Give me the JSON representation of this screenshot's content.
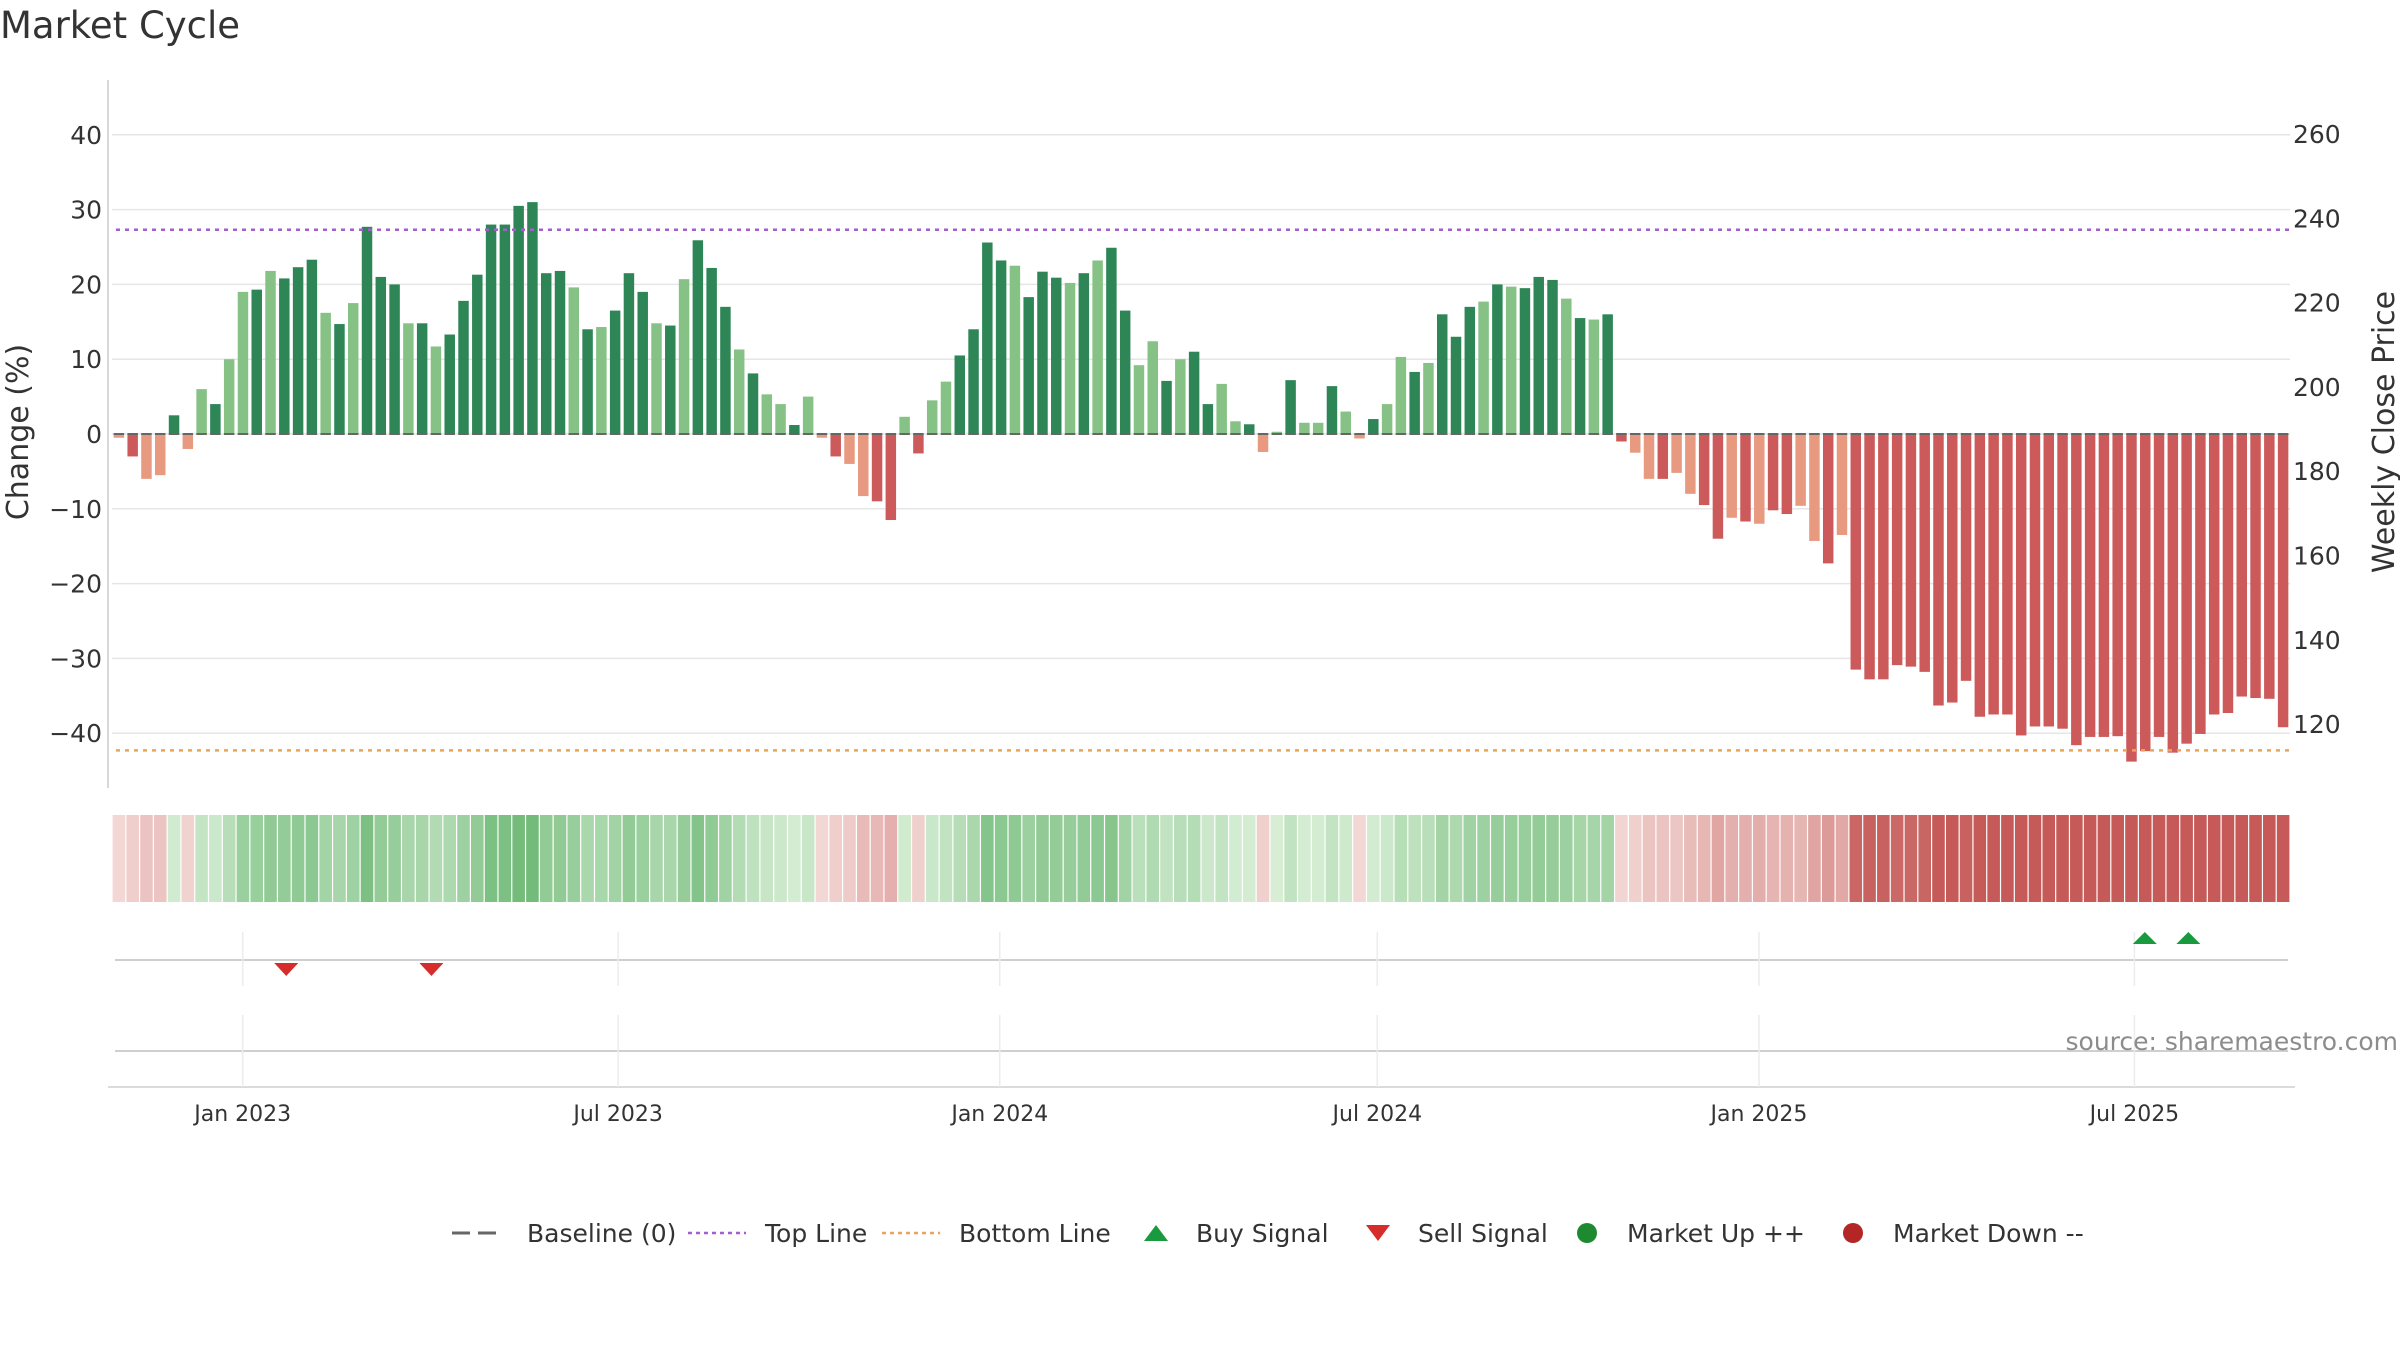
{
  "colors": {
    "up_strong": "#2e8656",
    "up_weak": "#86c185",
    "down_strong": "#cc5a5a",
    "down_weak": "#e79a80",
    "top_line": "#a65ecf",
    "bottom_line": "#e9a45c",
    "baseline": "#666666",
    "buy": "#1a9a3e",
    "sell": "#d62c2c",
    "market_up": "#1e8a30",
    "market_down": "#b42525",
    "grid": "#e6e6e6"
  },
  "chart_data": {
    "type": "bar",
    "title": "Market Cycle",
    "ylabel": "Change (%)",
    "ylabel_right": "Weekly Close Price",
    "ylim": [
      -47,
      48
    ],
    "ylim_right": [
      107,
      277
    ],
    "yticks": [
      40,
      30,
      20,
      10,
      0,
      -10,
      -20,
      -30,
      -40
    ],
    "yticks_labels": [
      "40",
      "30",
      "20",
      "10",
      "0",
      "−10",
      "−20",
      "−30",
      "−40"
    ],
    "yticks_right": [
      260,
      240,
      220,
      200,
      180,
      160,
      140,
      120
    ],
    "yticks_right_labels": [
      "260",
      "240",
      "220",
      "200",
      "180",
      "160",
      "140",
      "120"
    ],
    "top_line": 27.3,
    "bottom_line": -42.3,
    "start_date": "2022-10-30",
    "end_date": "2025-09-14",
    "grid": true,
    "x_ticks": [
      {
        "date": "2023-01-01",
        "label": "Jan 2023"
      },
      {
        "date": "2023-07-01",
        "label": "Jul 2023"
      },
      {
        "date": "2024-01-01",
        "label": "Jan 2024"
      },
      {
        "date": "2024-07-01",
        "label": "Jul 2024"
      },
      {
        "date": "2025-01-01",
        "label": "Jan 2025"
      },
      {
        "date": "2025-07-01",
        "label": "Jul 2025"
      }
    ],
    "series": [
      {
        "name": "Change (%)",
        "values": [
          -0.5,
          -3,
          -6,
          -5.5,
          2.5,
          -2,
          6,
          4,
          10,
          19,
          19.3,
          21.8,
          20.8,
          22.3,
          23.3,
          16.2,
          14.7,
          17.5,
          27.7,
          21,
          20,
          14.8,
          14.8,
          11.7,
          13.3,
          17.8,
          21.3,
          28,
          28,
          30.5,
          31,
          21.5,
          21.8,
          19.6,
          14,
          14.3,
          16.5,
          21.5,
          19,
          14.8,
          14.5,
          20.7,
          25.9,
          22.2,
          17,
          11.3,
          8.1,
          5.3,
          4,
          1.2,
          5,
          -0.5,
          -3,
          -4,
          -8.3,
          -9,
          -11.5,
          2.3,
          -2.6,
          4.5,
          7,
          10.5,
          14,
          25.6,
          23.2,
          22.5,
          18.3,
          21.7,
          20.9,
          20.2,
          21.5,
          23.2,
          24.9,
          16.5,
          9.2,
          12.4,
          7.1,
          10,
          11,
          4,
          6.7,
          1.7,
          1.3,
          -2.4,
          0.3,
          7.2,
          1.5,
          1.5,
          6.4,
          3,
          -0.6,
          2,
          4,
          10.3,
          8.3,
          9.5,
          16,
          13,
          17,
          17.7,
          20,
          19.7,
          19.5,
          21,
          20.6,
          18.1,
          15.5,
          15.3,
          16,
          -1,
          -2.5,
          -6,
          -6,
          -5.2,
          -8,
          -9.5,
          -14,
          -11.2,
          -11.7,
          -12,
          -10.2,
          -10.7,
          -9.6,
          -14.3,
          -17.3,
          -13.5,
          -31.5,
          -32.8,
          -32.8,
          -30.9,
          -31.1,
          -31.8,
          -36.3,
          -35.9,
          -33,
          -37.8,
          -37.5,
          -37.5,
          -40.3,
          -39.1,
          -39.1,
          -39.4,
          -41.6,
          -40.5,
          -40.5,
          -40.4,
          -43.8,
          -42.4,
          -40.5,
          -42.6,
          -41.4,
          -40.1,
          -37.5,
          -37.3,
          -35.1,
          -35.3,
          -35.4,
          -39.2
        ]
      },
      {
        "name": "Regime",
        "values": [
          0,
          0,
          0,
          0,
          1,
          0,
          1,
          1,
          1,
          1,
          1,
          1,
          1,
          1,
          1,
          1,
          1,
          1,
          1,
          1,
          1,
          1,
          1,
          1,
          1,
          1,
          1,
          1,
          1,
          1,
          1,
          1,
          1,
          1,
          1,
          1,
          1,
          1,
          1,
          1,
          1,
          1,
          1,
          1,
          1,
          1,
          1,
          1,
          1,
          1,
          1,
          0,
          0,
          0,
          0,
          0,
          0,
          1,
          0,
          1,
          1,
          1,
          1,
          1,
          1,
          1,
          1,
          1,
          1,
          1,
          1,
          1,
          1,
          1,
          1,
          1,
          1,
          1,
          1,
          1,
          1,
          1,
          1,
          0,
          1,
          1,
          1,
          1,
          1,
          1,
          0,
          1,
          1,
          1,
          1,
          1,
          1,
          1,
          1,
          1,
          1,
          1,
          1,
          1,
          1,
          1,
          1,
          1,
          1,
          1,
          0,
          0,
          0,
          0,
          0,
          0,
          0,
          0,
          0,
          0,
          0,
          0,
          0,
          0,
          0,
          0,
          0,
          0,
          0,
          0,
          0,
          0,
          0,
          0,
          0,
          0,
          0,
          0,
          0,
          0,
          0,
          0,
          0,
          0,
          0,
          0,
          0,
          0,
          0,
          0,
          0,
          0,
          0,
          0,
          0,
          0,
          0,
          0,
          0
        ]
      }
    ],
    "sell_signals": [
      "2023-01-22",
      "2023-04-02"
    ],
    "buy_signals": [
      "2025-07-06",
      "2025-07-27"
    ],
    "legend": [
      {
        "label": "Baseline (0)",
        "marker": "dash",
        "color": "#666666"
      },
      {
        "label": "Top Line",
        "marker": "dot-line",
        "color": "#a65ecf"
      },
      {
        "label": "Bottom Line",
        "marker": "dot-line",
        "color": "#e9a45c"
      },
      {
        "label": "Buy Signal",
        "marker": "triangle-up",
        "color": "#1a9a3e"
      },
      {
        "label": "Sell Signal",
        "marker": "triangle-down",
        "color": "#d62c2c"
      },
      {
        "label": "Market Up ++",
        "marker": "circle",
        "color": "#1e8a30"
      },
      {
        "label": "Market Down --",
        "marker": "circle",
        "color": "#b42525"
      }
    ],
    "legend_position": "bottom-center",
    "source": "source: sharemaestro.com"
  }
}
